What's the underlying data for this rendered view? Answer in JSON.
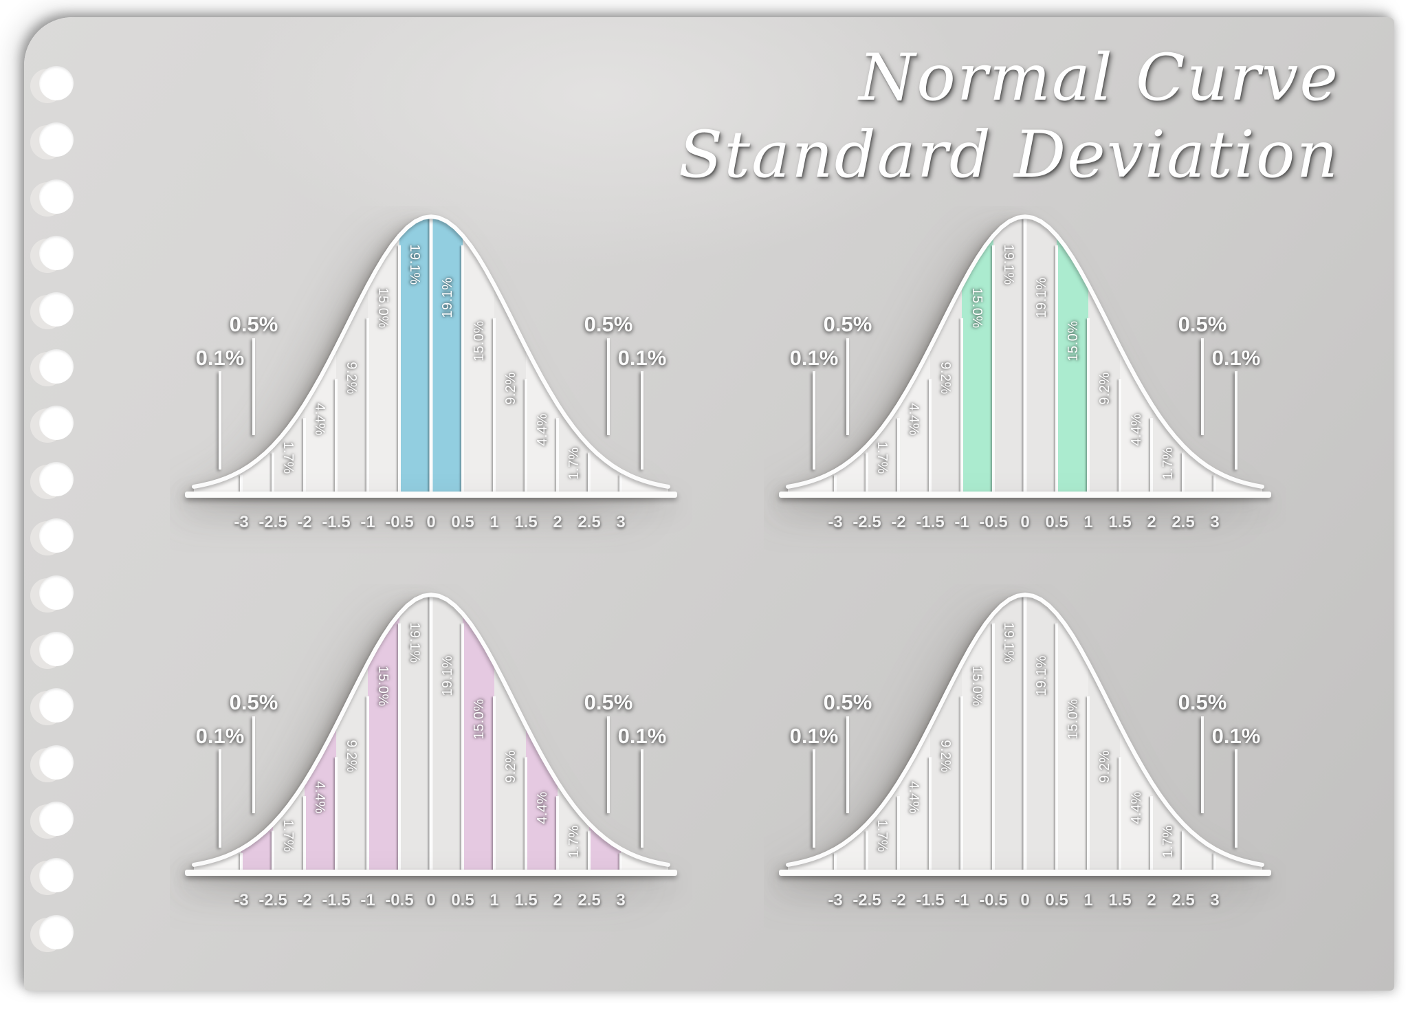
{
  "title": {
    "line1": "Normal Curve",
    "line2": "Standard Deviation"
  },
  "paper": {
    "hole_count": 16
  },
  "distribution": {
    "segment_labels": [
      "0.1%",
      "0.5%",
      "1.7%",
      "4.4%",
      "9.2%",
      "15.0%",
      "19.1%",
      "19.1%",
      "15.0%",
      "9.2%",
      "4.4%",
      "1.7%",
      "0.5%",
      "0.1%"
    ],
    "segment_values": [
      0.1,
      0.5,
      1.7,
      4.4,
      9.2,
      15.0,
      19.1,
      19.1,
      15.0,
      9.2,
      4.4,
      1.7,
      0.5,
      0.1
    ],
    "callout_left_outer": "0.1%",
    "callout_left_inner": "0.5%",
    "callout_right_inner": "0.5%",
    "callout_right_outer": "0.1%",
    "axis_ticks": [
      "-3",
      "-2.5",
      "-2",
      "-1.5",
      "-1",
      "-0.5",
      "0",
      "0.5",
      "1",
      "1.5",
      "2",
      "2.5",
      "3"
    ]
  },
  "chart_data": [
    {
      "type": "area",
      "name": "normal-curve-blue-center",
      "position": "top-left",
      "highlight_color": "#92cee0",
      "highlighted_segment_indices": [
        6,
        7
      ],
      "highlighted_values": [
        "19.1%",
        "19.1%"
      ],
      "x_range": [
        -3.75,
        3.75
      ],
      "grid": false,
      "legend": "none"
    },
    {
      "type": "area",
      "name": "normal-curve-green-one-sigma",
      "position": "top-right",
      "highlight_color": "#abebcf",
      "highlighted_segment_indices": [
        5,
        8
      ],
      "highlighted_values": [
        "15.0%",
        "15.0%"
      ],
      "x_range": [
        -3.75,
        3.75
      ],
      "grid": false,
      "legend": "none"
    },
    {
      "type": "area",
      "name": "normal-curve-pink-alternating",
      "position": "bottom-left",
      "highlight_color": "#e5c9e1",
      "highlighted_segment_indices": [
        1,
        3,
        5,
        8,
        10,
        12
      ],
      "highlighted_values": [
        "0.5%",
        "4.4%",
        "15.0%",
        "15.0%",
        "4.4%",
        "0.5%"
      ],
      "x_range": [
        -3.75,
        3.75
      ],
      "grid": false,
      "legend": "none"
    },
    {
      "type": "area",
      "name": "normal-curve-plain",
      "position": "bottom-right",
      "highlight_color": null,
      "highlighted_segment_indices": [],
      "highlighted_values": [],
      "x_range": [
        -3.75,
        3.75
      ],
      "grid": false,
      "legend": "none"
    }
  ]
}
